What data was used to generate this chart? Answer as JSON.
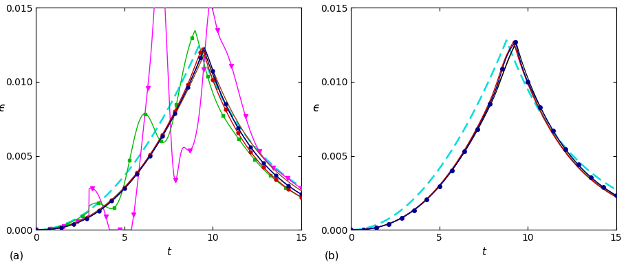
{
  "xlim": [
    0,
    15
  ],
  "ylim": [
    0,
    0.015
  ],
  "yticks": [
    0,
    0.005,
    0.01,
    0.015
  ],
  "xticks": [
    0,
    5,
    10,
    15
  ],
  "xlabel": "t",
  "ylabel": "ϵ",
  "label_a": "(a)",
  "label_b": "(b)",
  "background_color": "#ffffff",
  "figsize": [
    9.1,
    3.81
  ],
  "dpi": 100
}
